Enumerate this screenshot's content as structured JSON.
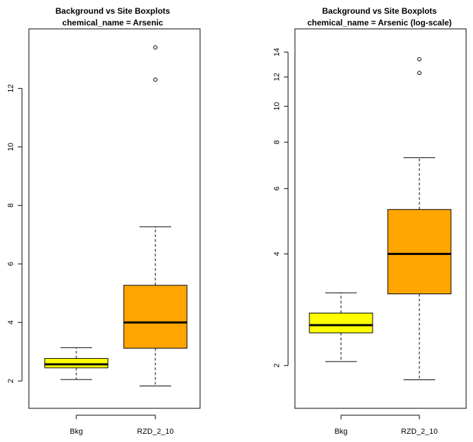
{
  "chart_data": [
    {
      "type": "boxplot",
      "title": "Background vs Site Boxplots",
      "subtitle": "chemical_name = Arsenic",
      "categories": [
        "Bkg",
        "RZD_2_10"
      ],
      "scale": "linear",
      "ylim": [
        1.3,
        13.8
      ],
      "y_ticks": [
        2,
        4,
        6,
        8,
        10,
        12
      ],
      "y_tick_labels": [
        "2",
        "4",
        "6",
        "8",
        "10",
        "12"
      ],
      "boxes": [
        {
          "category": "Bkg",
          "whisker_low": 2.05,
          "q1": 2.45,
          "median": 2.57,
          "q3": 2.77,
          "whisker_high": 3.14,
          "outliers": [],
          "color": "#ffff00"
        },
        {
          "category": "RZD_2_10",
          "whisker_low": 1.83,
          "q1": 3.12,
          "median": 4.0,
          "q3": 5.27,
          "whisker_high": 7.27,
          "outliers": [
            12.3,
            13.4
          ],
          "color": "#ffa500"
        }
      ]
    },
    {
      "type": "boxplot",
      "title": "Background vs Site Boxplots",
      "subtitle": "chemical_name = Arsenic (log-scale)",
      "categories": [
        "Bkg",
        "RZD_2_10"
      ],
      "scale": "log",
      "ylim": [
        1.6,
        15.5
      ],
      "y_ticks": [
        2,
        4,
        6,
        8,
        10,
        12,
        14
      ],
      "y_tick_labels": [
        "2",
        "4",
        "6",
        "8",
        "10",
        "12",
        "14"
      ],
      "boxes": [
        {
          "category": "Bkg",
          "whisker_low": 2.05,
          "q1": 2.45,
          "median": 2.57,
          "q3": 2.77,
          "whisker_high": 3.14,
          "outliers": [],
          "color": "#ffff00"
        },
        {
          "category": "RZD_2_10",
          "whisker_low": 1.83,
          "q1": 3.12,
          "median": 4.0,
          "q3": 5.27,
          "whisker_high": 7.27,
          "outliers": [
            12.3,
            13.4
          ],
          "color": "#ffa500"
        }
      ]
    }
  ]
}
